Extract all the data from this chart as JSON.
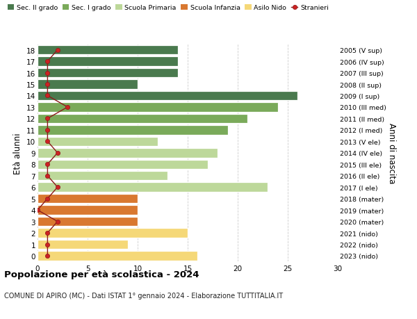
{
  "ages": [
    18,
    17,
    16,
    15,
    14,
    13,
    12,
    11,
    10,
    9,
    8,
    7,
    6,
    5,
    4,
    3,
    2,
    1,
    0
  ],
  "right_labels": [
    "2005 (V sup)",
    "2006 (IV sup)",
    "2007 (III sup)",
    "2008 (II sup)",
    "2009 (I sup)",
    "2010 (III med)",
    "2011 (II med)",
    "2012 (I med)",
    "2013 (V ele)",
    "2014 (IV ele)",
    "2015 (III ele)",
    "2016 (II ele)",
    "2017 (I ele)",
    "2018 (mater)",
    "2019 (mater)",
    "2020 (mater)",
    "2021 (nido)",
    "2022 (nido)",
    "2023 (nido)"
  ],
  "bar_values": [
    14,
    14,
    14,
    10,
    26,
    24,
    21,
    19,
    12,
    18,
    17,
    13,
    23,
    10,
    10,
    10,
    15,
    9,
    16
  ],
  "bar_colors": [
    "#4a7a4e",
    "#4a7a4e",
    "#4a7a4e",
    "#4a7a4e",
    "#4a7a4e",
    "#7aaa5a",
    "#7aaa5a",
    "#7aaa5a",
    "#bdd89a",
    "#bdd89a",
    "#bdd89a",
    "#bdd89a",
    "#bdd89a",
    "#d97830",
    "#d97830",
    "#d97830",
    "#f5d878",
    "#f5d878",
    "#f5d878"
  ],
  "stranieri_values": [
    2,
    1,
    1,
    1,
    1,
    3,
    1,
    1,
    1,
    2,
    1,
    1,
    2,
    1,
    0,
    2,
    1,
    1,
    1
  ],
  "legend_labels": [
    "Sec. II grado",
    "Sec. I grado",
    "Scuola Primaria",
    "Scuola Infanzia",
    "Asilo Nido",
    "Stranieri"
  ],
  "legend_colors": [
    "#4a7a4e",
    "#7aaa5a",
    "#bdd89a",
    "#d97830",
    "#f5d878",
    "#cc2222"
  ],
  "title": "Popolazione per età scolastica - 2024",
  "subtitle": "COMUNE DI APIRO (MC) - Dati ISTAT 1° gennaio 2024 - Elaborazione TUTTITALIA.IT",
  "ylabel_left": "Età alunni",
  "ylabel_right": "Anni di nascita",
  "xlim": [
    0,
    30
  ],
  "xticks": [
    0,
    5,
    10,
    15,
    20,
    25,
    30
  ],
  "background_color": "#ffffff",
  "grid_color": "#cccccc",
  "bar_height": 0.82
}
